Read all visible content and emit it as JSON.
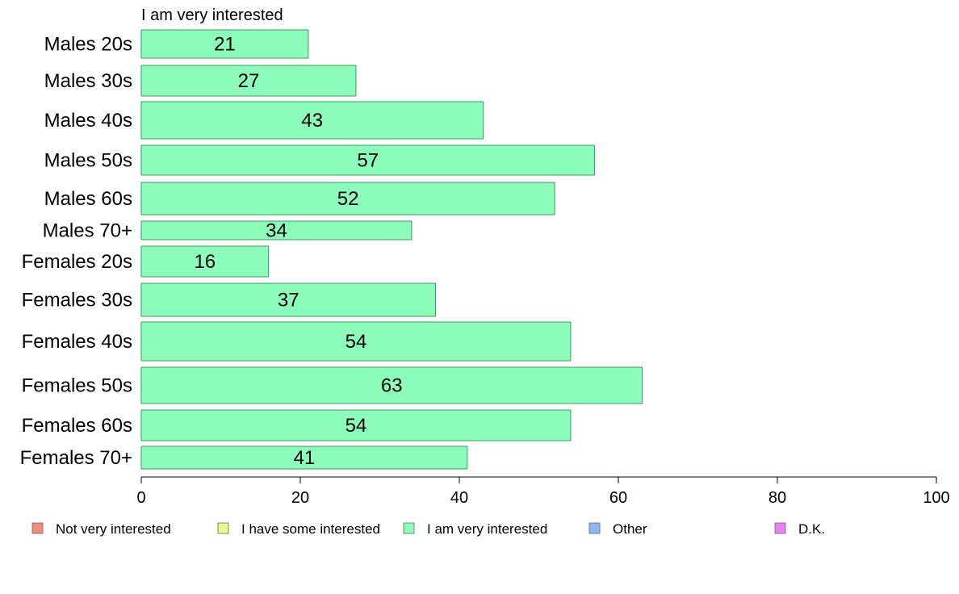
{
  "chart_data": {
    "type": "bar",
    "orientation": "horizontal",
    "panel_title": "I am very interested",
    "categories": [
      "Males 20s",
      "Males 30s",
      "Males 40s",
      "Males 50s",
      "Males 60s",
      "Males 70+",
      "Females 20s",
      "Females 30s",
      "Females 40s",
      "Females 50s",
      "Females 60s",
      "Females 70+"
    ],
    "series": [
      {
        "name": "I am very interested",
        "values": [
          21,
          27,
          43,
          57,
          52,
          34,
          16,
          37,
          54,
          63,
          54,
          41
        ]
      }
    ],
    "data_labels": [
      "21",
      "27",
      "43",
      "57",
      "52",
      "34",
      "16",
      "37",
      "54",
      "63",
      "54",
      "41"
    ],
    "xlim": [
      0,
      100
    ],
    "x_ticks": [
      0,
      20,
      40,
      60,
      80,
      100
    ],
    "x_tick_labels": [
      "0",
      "20",
      "40",
      "60",
      "80",
      "100"
    ],
    "legend": {
      "placement": "bottom",
      "items": [
        {
          "label": "Not very interested",
          "color": "#f28a82"
        },
        {
          "label": "I have some interested",
          "color": "#ecfa8a"
        },
        {
          "label": "I am very interested",
          "color": "#8cfcbb"
        },
        {
          "label": "Other",
          "color": "#8cb8f7"
        },
        {
          "label": "D.K.",
          "color": "#e882f2"
        }
      ]
    },
    "bar_color": "#8cfcbb",
    "bar_stroke": "#3e9a64",
    "grid": false
  }
}
